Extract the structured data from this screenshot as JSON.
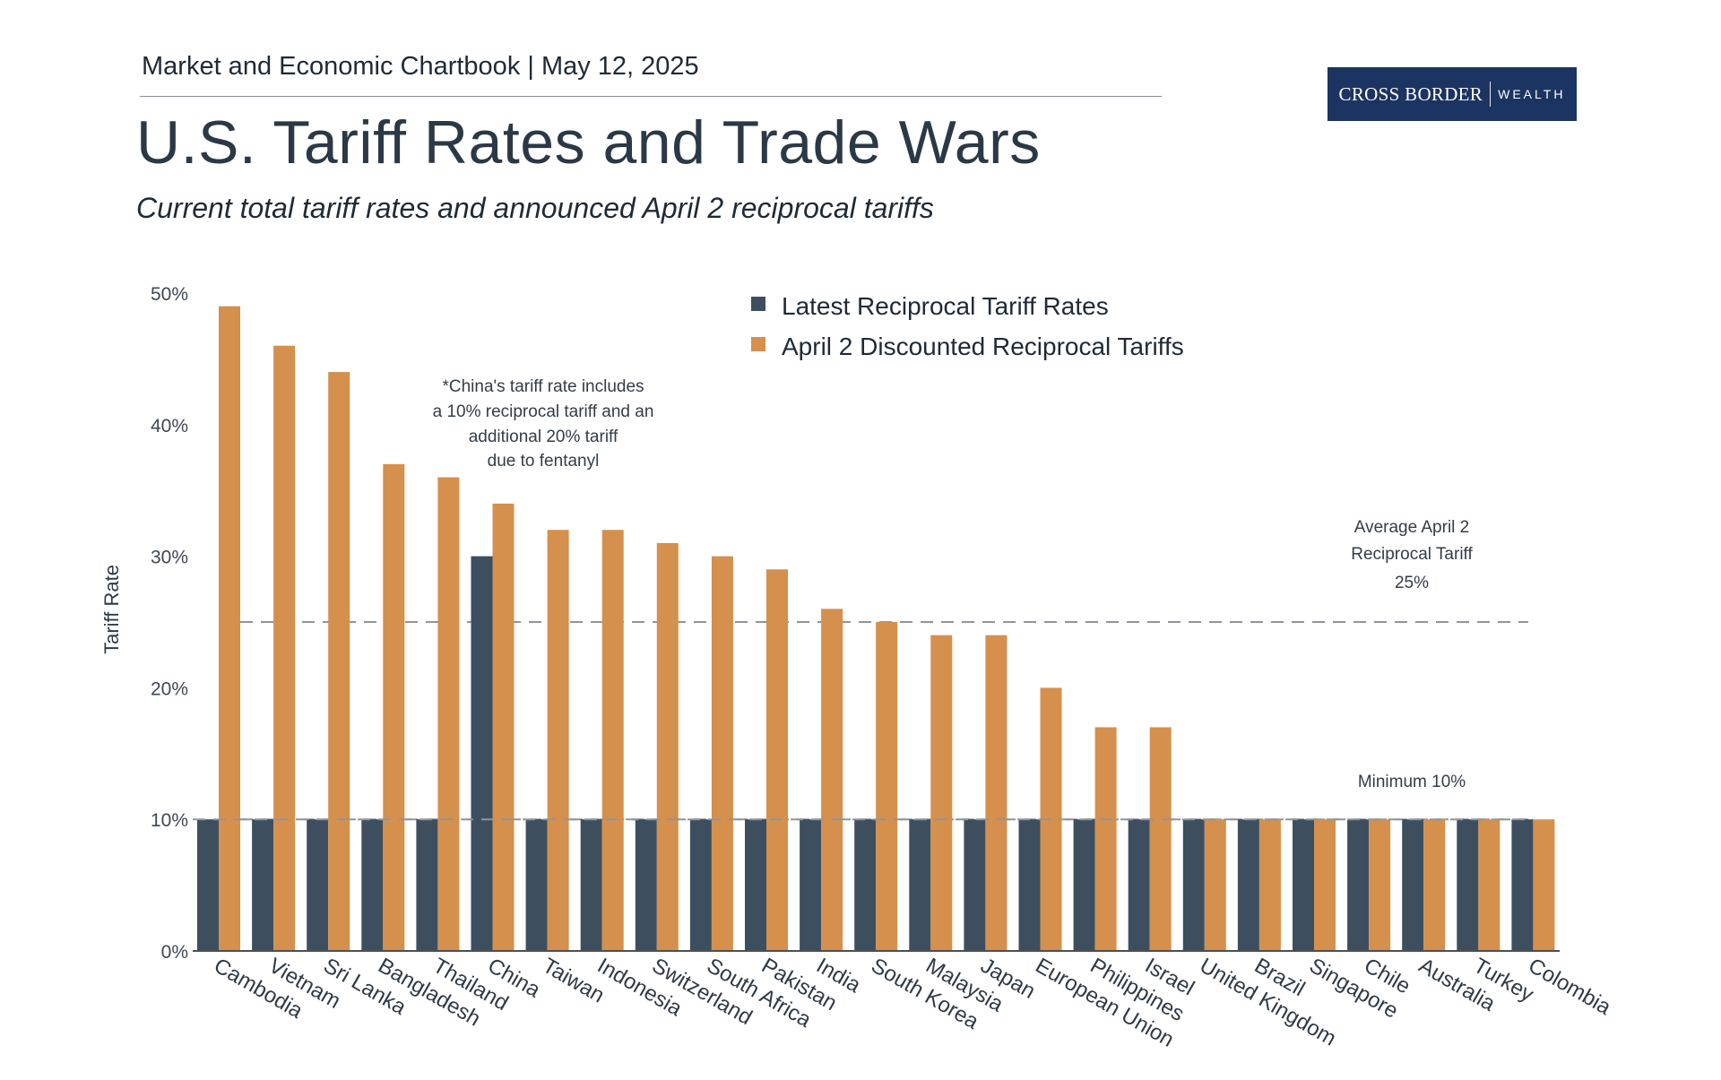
{
  "header": {
    "chartbook": "Market and Economic Chartbook | May 12, 2025",
    "logo_brand": "CROSS BORDER",
    "logo_sub": "WEALTH",
    "title": "U.S. Tariff Rates and Trade Wars",
    "subtitle": "Current total tariff rates and announced April 2 reciprocal tariffs"
  },
  "colors": {
    "latest": "#3d4f5f",
    "april": "#d4904c",
    "reference": "#8f959b",
    "axis": "#4a4f55",
    "logo_bg": "#1c3461"
  },
  "chart_data": {
    "type": "bar",
    "title": "U.S. Tariff Rates and Trade Wars",
    "ylabel": "Tariff Rate",
    "xlabel": "",
    "ylim": [
      0,
      50
    ],
    "yticks": [
      0,
      10,
      20,
      30,
      40,
      50
    ],
    "ytick_labels": [
      "0%",
      "10%",
      "20%",
      "30%",
      "40%",
      "50%"
    ],
    "legend_position": "top-center",
    "categories": [
      "Cambodia",
      "Vietnam",
      "Sri Lanka",
      "Bangladesh",
      "Thailand",
      "China",
      "Taiwan",
      "Indonesia",
      "Switzerland",
      "South Africa",
      "Pakistan",
      "India",
      "South Korea",
      "Malaysia",
      "Japan",
      "European Union",
      "Philippines",
      "Israel",
      "United Kingdom",
      "Brazil",
      "Singapore",
      "Chile",
      "Australia",
      "Turkey",
      "Colombia"
    ],
    "series": [
      {
        "name": "Latest Reciprocal Tariff Rates",
        "color": "#3d4f5f",
        "values": [
          10,
          10,
          10,
          10,
          10,
          30,
          10,
          10,
          10,
          10,
          10,
          10,
          10,
          10,
          10,
          10,
          10,
          10,
          10,
          10,
          10,
          10,
          10,
          10,
          10
        ]
      },
      {
        "name": "April 2 Discounted Reciprocal Tariffs",
        "color": "#d4904c",
        "values": [
          49,
          46,
          44,
          37,
          36,
          34,
          32,
          32,
          31,
          30,
          29,
          26,
          25,
          24,
          24,
          20,
          17,
          17,
          10,
          10,
          10,
          10,
          10,
          10,
          10
        ]
      }
    ],
    "reference_lines": [
      {
        "value": 25,
        "label_lines": [
          "Average April 2",
          "Reciprocal Tariff",
          "25%"
        ]
      },
      {
        "value": 10,
        "label_lines": [
          "Minimum 10%"
        ]
      }
    ],
    "annotation": {
      "lines": [
        "*China's tariff rate includes",
        "a 10% reciprocal tariff and an",
        "additional 20% tariff",
        "due to fentanyl"
      ]
    }
  }
}
